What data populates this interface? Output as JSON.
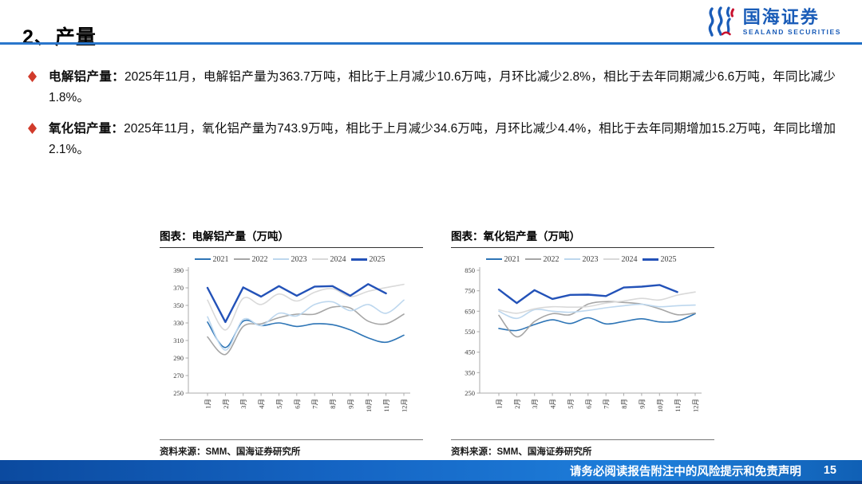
{
  "header": {
    "title": "2、产量"
  },
  "logo": {
    "name_cn": "国海证券",
    "name_en": "SEALAND SECURITIES"
  },
  "bullets": [
    {
      "lead": "电解铝产量：",
      "text": "2025年11月，电解铝产量为363.7万吨，相比于上月减少10.6万吨，月环比减少2.8%，相比于去年同期减少6.6万吨，年同比减少1.8%。"
    },
    {
      "lead": "氧化铝产量：",
      "text": "2025年11月，氧化铝产量为743.9万吨，相比于上月减少34.6万吨，月环比减少4.4%，相比于去年同期增加15.2万吨，年同比增加2.1%。"
    }
  ],
  "chart_data": [
    {
      "type": "line",
      "title": "图表：电解铝产量（万吨）",
      "source": "资料来源：SMM、国海证券研究所",
      "categories": [
        "1月",
        "2月",
        "3月",
        "4月",
        "5月",
        "6月",
        "7月",
        "8月",
        "9月",
        "10月",
        "11月",
        "12月"
      ],
      "ylim": [
        250,
        390
      ],
      "yticks": [
        250,
        270,
        290,
        310,
        330,
        350,
        370,
        390
      ],
      "grid": false,
      "legend_position": "top",
      "series": [
        {
          "name": "2021",
          "color": "#2E75B6",
          "line_width": 1.6,
          "smooth": true,
          "values": [
            331,
            302,
            332,
            327,
            330,
            326,
            329,
            328,
            322,
            313,
            308,
            316
          ]
        },
        {
          "name": "2022",
          "color": "#A6A6A6",
          "line_width": 1.6,
          "smooth": true,
          "values": [
            314,
            294,
            326,
            329,
            336,
            340,
            340,
            348,
            347,
            332,
            329,
            340
          ]
        },
        {
          "name": "2023",
          "color": "#BDD7EE",
          "line_width": 1.6,
          "smooth": true,
          "values": [
            337,
            299,
            334,
            327,
            341,
            338,
            351,
            354,
            344,
            351,
            341,
            356
          ]
        },
        {
          "name": "2024",
          "color": "#D9D9D9",
          "line_width": 1.6,
          "smooth": true,
          "values": [
            356,
            322,
            358,
            351,
            363,
            355,
            365,
            369,
            360,
            366,
            370.3,
            374
          ]
        },
        {
          "name": "2025",
          "color": "#2352B8",
          "line_width": 2.4,
          "smooth": false,
          "values": [
            370,
            331,
            370.5,
            360,
            372,
            361,
            371.5,
            372,
            361,
            374.3,
            363.7
          ]
        }
      ]
    },
    {
      "type": "line",
      "title": "图表：氧化铝产量（万吨）",
      "source": "资料来源：SMM、国海证券研究所",
      "categories": [
        "1月",
        "2月",
        "3月",
        "4月",
        "5月",
        "6月",
        "7月",
        "8月",
        "9月",
        "10月",
        "11月",
        "12月"
      ],
      "ylim": [
        250,
        850
      ],
      "yticks": [
        250,
        350,
        450,
        550,
        650,
        750,
        850
      ],
      "grid": false,
      "legend_position": "top",
      "series": [
        {
          "name": "2021",
          "color": "#2E75B6",
          "line_width": 1.6,
          "smooth": true,
          "values": [
            566,
            556,
            585,
            608,
            590,
            618,
            588,
            600,
            613,
            598,
            602,
            638
          ]
        },
        {
          "name": "2022",
          "color": "#A6A6A6",
          "line_width": 1.6,
          "smooth": true,
          "values": [
            630,
            525,
            600,
            638,
            633,
            685,
            697,
            693,
            685,
            662,
            633,
            641
          ]
        },
        {
          "name": "2023",
          "color": "#BDD7EE",
          "line_width": 1.6,
          "smooth": true,
          "values": [
            650,
            615,
            658,
            650,
            645,
            654,
            667,
            677,
            684,
            672,
            677,
            680
          ]
        },
        {
          "name": "2024",
          "color": "#D9D9D9",
          "line_width": 1.6,
          "smooth": true,
          "values": [
            657,
            640,
            662,
            672,
            670,
            673,
            690,
            700,
            713,
            705,
            728.7,
            744
          ]
        },
        {
          "name": "2025",
          "color": "#2352B8",
          "line_width": 2.4,
          "smooth": false,
          "values": [
            756,
            690,
            753,
            710,
            730,
            731,
            724,
            766,
            770,
            778.5,
            743.9
          ]
        }
      ]
    }
  ],
  "footer": {
    "disclaimer": "请务必阅读报告附注中的风险提示和免责声明",
    "page": "15"
  },
  "colors": {
    "divider_blue": "#1F6EC5",
    "bullet_red": "#D13B2B",
    "logo_blue": "#1A5CB8",
    "logo_red": "#C8102E",
    "footer_blue": "#1565C4"
  }
}
